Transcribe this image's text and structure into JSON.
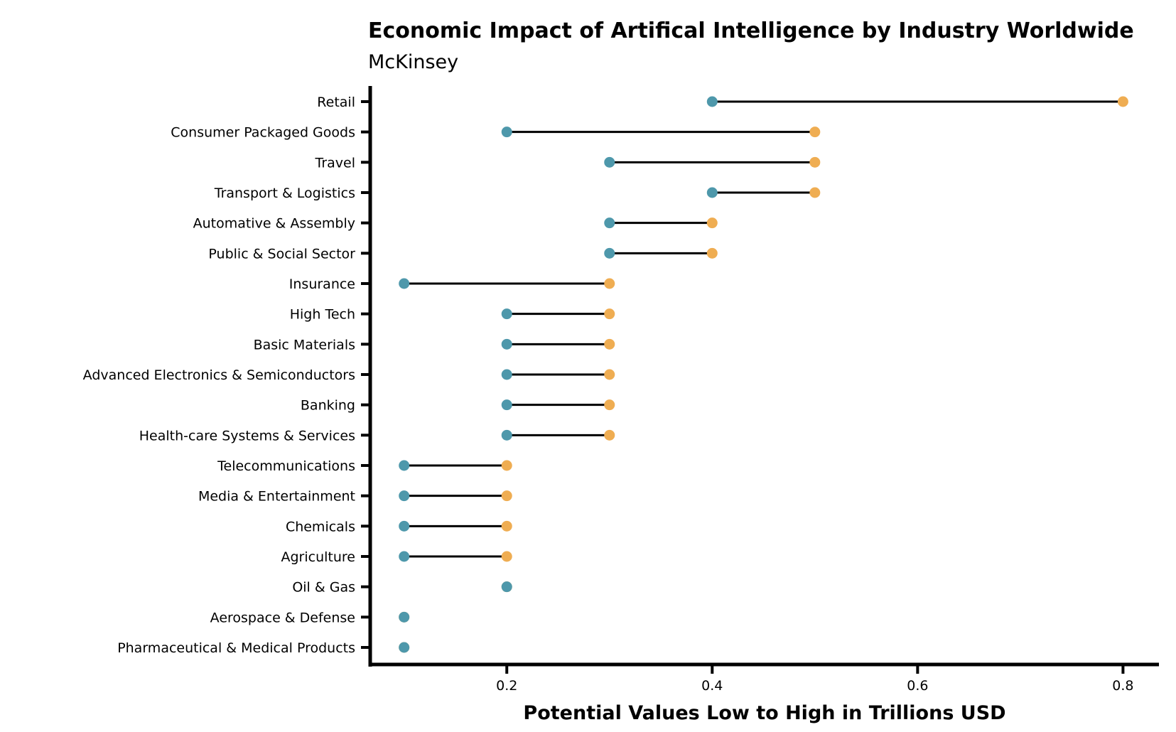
{
  "chart_data": {
    "type": "dumbbell",
    "title": "Economic Impact of Artifical Intelligence by Industry Worldwide",
    "subtitle": "McKinsey",
    "xlabel": "Potential Values Low to High in Trillions USD",
    "ylabel": "",
    "xlim": [
      0.067,
      0.835
    ],
    "xticks": [
      0.2,
      0.4,
      0.6,
      0.8
    ],
    "xtick_labels": [
      "0.2",
      "0.4",
      "0.6",
      "0.8"
    ],
    "grid": false,
    "colors": {
      "low": "#4e98ab",
      "high": "#efad52",
      "line": "#000000",
      "axis": "#000000"
    },
    "categories": [
      "Retail",
      "Consumer Packaged Goods",
      "Travel",
      "Transport & Logistics",
      "Automative & Assembly",
      "Public & Social Sector",
      "Insurance",
      "High Tech",
      "Basic Materials",
      "Advanced Electronics & Semiconductors",
      "Banking",
      "Health-care Systems & Services",
      "Telecommunications",
      "Media & Entertainment",
      "Chemicals",
      "Agriculture",
      "Oil & Gas",
      "Aerospace & Defense",
      "Pharmaceutical & Medical Products"
    ],
    "series": [
      {
        "name": "Low",
        "values": [
          0.4,
          0.2,
          0.3,
          0.4,
          0.3,
          0.3,
          0.1,
          0.2,
          0.2,
          0.2,
          0.2,
          0.2,
          0.1,
          0.1,
          0.1,
          0.1,
          0.2,
          0.1,
          0.1
        ]
      },
      {
        "name": "High",
        "values": [
          0.8,
          0.5,
          0.5,
          0.5,
          0.4,
          0.4,
          0.3,
          0.3,
          0.3,
          0.3,
          0.3,
          0.3,
          0.2,
          0.2,
          0.2,
          0.2,
          0.2,
          0.1,
          0.1
        ]
      }
    ]
  }
}
